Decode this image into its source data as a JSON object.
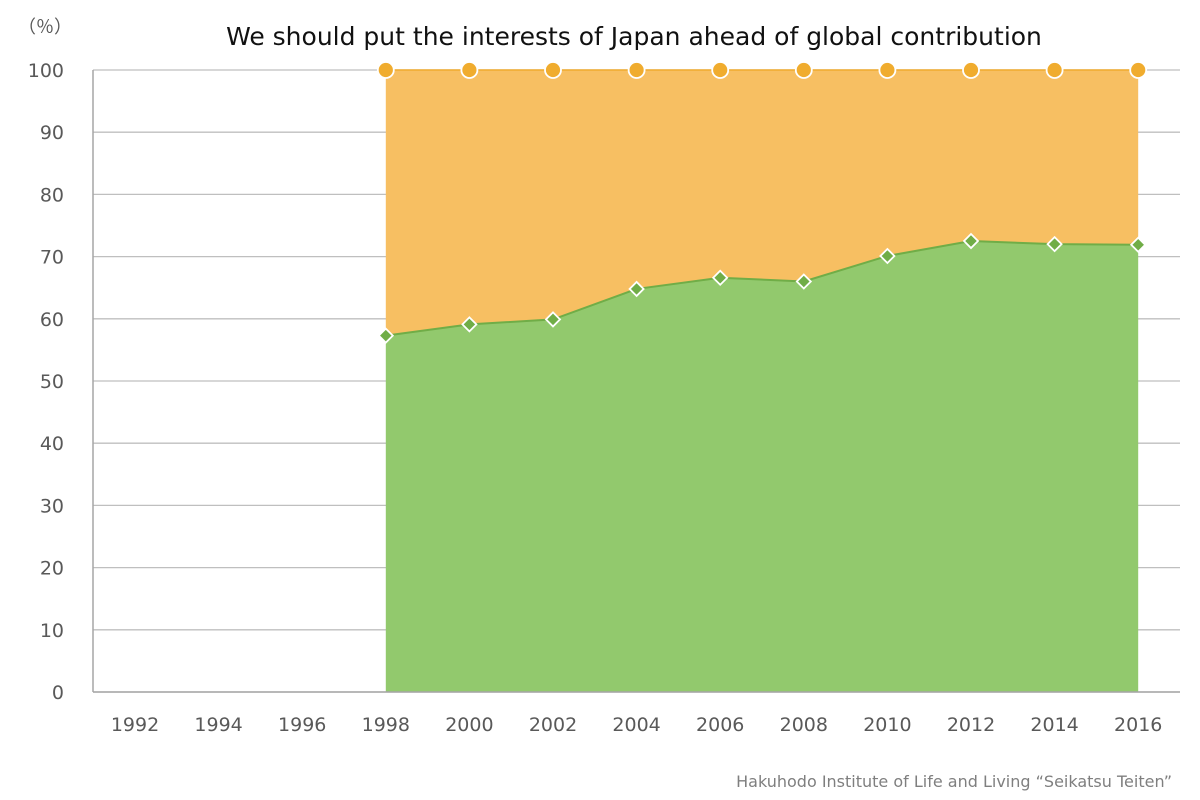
{
  "chart_data": {
    "type": "area",
    "title": "We should put the interests of Japan ahead of global contribution",
    "unit_label": "（％）",
    "source": "Hakuhodo Institute of Life and Living “Seikatsu Teiten”",
    "categories": [
      "1992",
      "1994",
      "1996",
      "1998",
      "2000",
      "2002",
      "2004",
      "2006",
      "2008",
      "2010",
      "2012",
      "2014",
      "2016"
    ],
    "series": [
      {
        "values": [
          null,
          null,
          null,
          57.3,
          59.1,
          59.9,
          64.8,
          66.6,
          66.0,
          70.1,
          72.5,
          72.0,
          71.9
        ],
        "color": "#92c96d",
        "marker": "diamond",
        "line_color": "#70ad47"
      },
      {
        "values": [
          null,
          null,
          null,
          100,
          100,
          100,
          100,
          100,
          100,
          100,
          100,
          100,
          100
        ],
        "color": "#f7bf62",
        "marker": "circle",
        "line_color": "#f0ac2e"
      }
    ],
    "ylim": [
      0,
      100
    ],
    "yticks": [
      "0",
      "10",
      "20",
      "30",
      "40",
      "50",
      "60",
      "70",
      "80",
      "90",
      "100"
    ],
    "grid": true,
    "legend": "none"
  }
}
